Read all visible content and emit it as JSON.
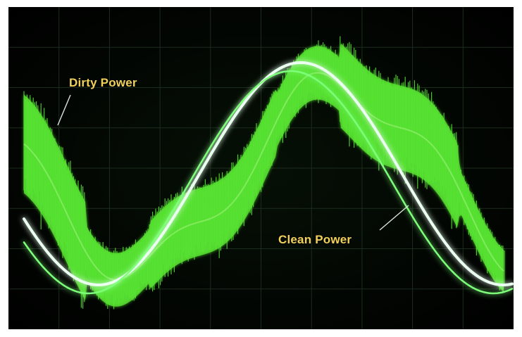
{
  "labels": {
    "dirty": "Dirty Power",
    "clean": "Clean Power"
  },
  "colors": {
    "background": "#000000",
    "clean_trace": "#eafff0",
    "clean_glow": "#7dff7a",
    "dirty_fill": "#58e632",
    "dirty_core": "#9ff27a",
    "grid": "#1c2c1c",
    "label_text": "#f2d05a",
    "pointer_line": "#d9e6d9",
    "frame_border": "#ffffff"
  }
}
